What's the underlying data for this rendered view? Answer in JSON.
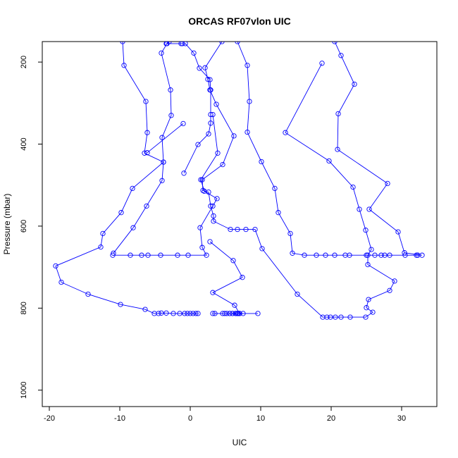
{
  "chart_data": {
    "type": "line",
    "title": "ORCAS RF07vlon UIC",
    "xlabel": "UIC",
    "ylabel": "Pressure (mbar)",
    "xlim": [
      -21,
      35
    ],
    "ylim": [
      1040,
      150
    ],
    "y_reversed": true,
    "grid": false,
    "legend": "none",
    "color": "#0000ff",
    "xticks": [
      -20,
      -10,
      0,
      10,
      20,
      30
    ],
    "yticks": [
      200,
      400,
      600,
      800,
      1000
    ],
    "series": [
      {
        "values": [
          [
            -9.6,
            150
          ],
          [
            -9.4,
            208
          ],
          [
            -6.3,
            296
          ],
          [
            -6.1,
            372
          ],
          [
            -6.5,
            422
          ],
          [
            -3.8,
            444
          ],
          [
            -8.2,
            508
          ],
          [
            -9.8,
            567
          ],
          [
            -12.4,
            618
          ],
          [
            -12.7,
            651
          ],
          [
            -19.1,
            697
          ],
          [
            -18.3,
            737
          ],
          [
            -14.5,
            766
          ],
          [
            -9.9,
            791
          ],
          [
            -6.4,
            803
          ],
          [
            -5.1,
            813
          ],
          [
            -4.5,
            813
          ],
          [
            -4.1,
            812
          ],
          [
            -3.4,
            812
          ],
          [
            -2.4,
            813
          ],
          [
            -1.5,
            813
          ],
          [
            -0.8,
            813
          ],
          [
            -0.4,
            813
          ],
          [
            0.0,
            813
          ],
          [
            0.4,
            813
          ],
          [
            0.8,
            813
          ],
          [
            1.1,
            813
          ]
        ]
      },
      {
        "values": [
          [
            -3.0,
            150
          ],
          [
            -3.3,
            155
          ],
          [
            -4.1,
            178
          ],
          [
            -2.8,
            268
          ],
          [
            -2.7,
            330
          ],
          [
            -4.0,
            384
          ],
          [
            -3.8,
            444
          ],
          [
            -4.0,
            489
          ],
          [
            -6.2,
            551
          ],
          [
            -8.1,
            604
          ],
          [
            -10.9,
            666
          ]
        ]
      },
      {
        "values": [
          [
            -3.4,
            155
          ],
          [
            -1.3,
            155
          ],
          [
            -1.1,
            155
          ],
          [
            -0.7,
            155
          ],
          [
            0.5,
            178
          ],
          [
            1.3,
            215
          ],
          [
            2.8,
            243
          ],
          [
            2.9,
            268
          ],
          [
            2.9,
            328
          ],
          [
            2.9,
            349
          ],
          [
            2.6,
            375
          ],
          [
            1.1,
            401
          ],
          [
            -0.9,
            471
          ]
        ]
      },
      {
        "values": [
          [
            4.5,
            150
          ],
          [
            2.1,
            214
          ],
          [
            2.5,
            242
          ],
          [
            2.8,
            268
          ],
          [
            3.7,
            303
          ],
          [
            6.2,
            380
          ],
          [
            4.6,
            450
          ],
          [
            1.7,
            487
          ],
          [
            1.8,
            513
          ],
          [
            2.6,
            517
          ],
          [
            2.9,
            551
          ],
          [
            3.3,
            575
          ],
          [
            3.3,
            588
          ],
          [
            5.7,
            608
          ],
          [
            6.7,
            608
          ],
          [
            7.9,
            608
          ],
          [
            9.2,
            608
          ],
          [
            10.2,
            655
          ],
          [
            15.2,
            766
          ],
          [
            18.8,
            822
          ],
          [
            19.4,
            822
          ],
          [
            19.9,
            822
          ],
          [
            20.6,
            822
          ],
          [
            21.4,
            822
          ],
          [
            22.7,
            822
          ],
          [
            24.9,
            822
          ],
          [
            25.9,
            810
          ],
          [
            25.0,
            799
          ],
          [
            25.3,
            779
          ],
          [
            28.3,
            757
          ],
          [
            29.0,
            734
          ],
          [
            25.2,
            694
          ],
          [
            25.2,
            671
          ],
          [
            25.7,
            657
          ],
          [
            24.9,
            610
          ],
          [
            24.0,
            559
          ],
          [
            23.1,
            505
          ],
          [
            19.7,
            441
          ],
          [
            13.5,
            372
          ],
          [
            18.7,
            203
          ]
        ]
      },
      {
        "values": [
          [
            6.7,
            150
          ],
          [
            8.1,
            208
          ],
          [
            8.4,
            296
          ],
          [
            8.1,
            371
          ],
          [
            10.1,
            443
          ],
          [
            12.0,
            508
          ],
          [
            12.5,
            567
          ],
          [
            14.2,
            618
          ],
          [
            14.5,
            666
          ],
          [
            16.2,
            671
          ],
          [
            17.9,
            671
          ],
          [
            19.2,
            671
          ],
          [
            20.5,
            671
          ],
          [
            22.0,
            671
          ],
          [
            22.6,
            671
          ],
          [
            25.0,
            671
          ],
          [
            26.2,
            671
          ],
          [
            27.1,
            671
          ],
          [
            27.6,
            671
          ],
          [
            28.3,
            671
          ],
          [
            30.5,
            671
          ],
          [
            32.1,
            671
          ],
          [
            32.3,
            671
          ],
          [
            32.9,
            671
          ],
          [
            30.4,
            665
          ],
          [
            29.5,
            614
          ],
          [
            25.4,
            559
          ],
          [
            28.0,
            496
          ],
          [
            20.9,
            413
          ],
          [
            21.0,
            326
          ],
          [
            23.3,
            254
          ],
          [
            21.4,
            184
          ],
          [
            20.5,
            150
          ]
        ]
      },
      {
        "values": [
          [
            -1.0,
            350
          ],
          [
            -6.1,
            421
          ]
        ]
      },
      {
        "values": [
          [
            -11.0,
            671
          ],
          [
            -8.5,
            671
          ],
          [
            -6.9,
            671
          ],
          [
            -6.0,
            671
          ],
          [
            -4.2,
            671
          ],
          [
            -1.8,
            671
          ],
          [
            -0.3,
            671
          ],
          [
            2.3,
            671
          ],
          [
            1.7,
            652
          ],
          [
            1.4,
            604
          ],
          [
            3.2,
            551
          ],
          [
            3.8,
            533
          ],
          [
            2.0,
            515
          ],
          [
            1.5,
            487
          ],
          [
            3.9,
            422
          ],
          [
            3.2,
            328
          ]
        ]
      },
      {
        "values": [
          [
            2.8,
            638
          ],
          [
            6.1,
            684
          ],
          [
            7.4,
            725
          ],
          [
            3.2,
            762
          ],
          [
            6.3,
            793
          ],
          [
            7.0,
            813
          ],
          [
            6.7,
            813
          ],
          [
            6.4,
            813
          ],
          [
            6.0,
            813
          ],
          [
            5.6,
            813
          ],
          [
            5.2,
            813
          ],
          [
            4.9,
            813
          ],
          [
            4.6,
            813
          ],
          [
            3.5,
            813
          ],
          [
            3.2,
            813
          ],
          [
            9.6,
            813
          ]
        ]
      },
      {
        "values": [
          [
            5.6,
            813
          ],
          [
            6.0,
            813
          ],
          [
            6.5,
            813
          ],
          [
            7.0,
            813
          ],
          [
            7.5,
            813
          ],
          [
            6.8,
            813
          ]
        ]
      }
    ]
  }
}
